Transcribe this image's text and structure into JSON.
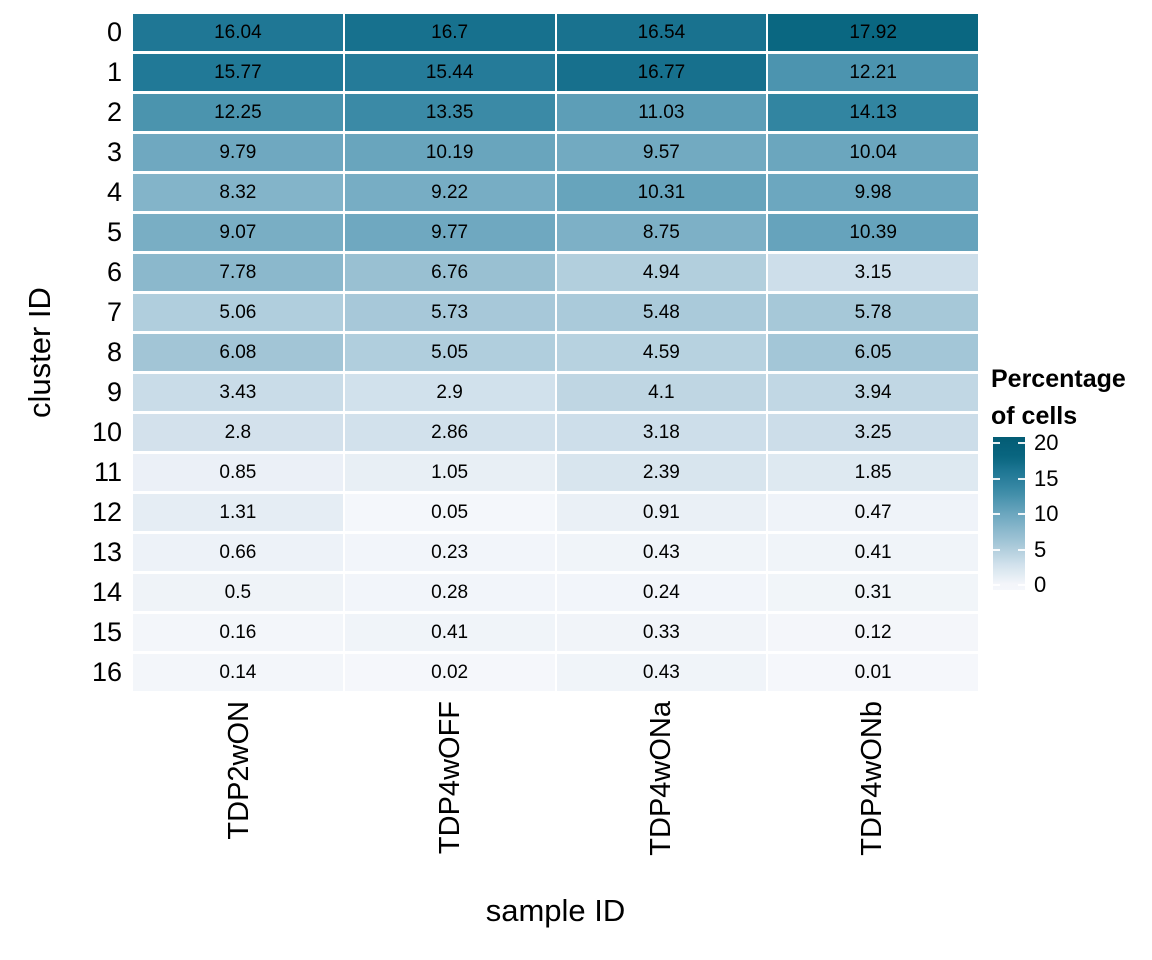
{
  "figure": {
    "background": "#ffffff"
  },
  "chart_data": {
    "type": "heatmap",
    "title": "",
    "xlabel": "sample ID",
    "ylabel": "cluster ID",
    "x_categories": [
      "TDP2wON",
      "TDP4wOFF",
      "TDP4wONa",
      "TDP4wONb"
    ],
    "y_categories": [
      "0",
      "1",
      "2",
      "3",
      "4",
      "5",
      "6",
      "7",
      "8",
      "9",
      "10",
      "11",
      "12",
      "13",
      "14",
      "15",
      "16"
    ],
    "values": [
      [
        "16.04",
        "16.7",
        "16.54",
        "17.92"
      ],
      [
        "15.77",
        "15.44",
        "16.77",
        "12.21"
      ],
      [
        "12.25",
        "13.35",
        "11.03",
        "14.13"
      ],
      [
        "9.79",
        "10.19",
        "9.57",
        "10.04"
      ],
      [
        "8.32",
        "9.22",
        "10.31",
        "9.98"
      ],
      [
        "9.07",
        "9.77",
        "8.75",
        "10.39"
      ],
      [
        "7.78",
        "6.76",
        "4.94",
        "3.15"
      ],
      [
        "5.06",
        "5.73",
        "5.48",
        "5.78"
      ],
      [
        "6.08",
        "5.05",
        "4.59",
        "6.05"
      ],
      [
        "3.43",
        "2.9",
        "4.1",
        "3.94"
      ],
      [
        "2.8",
        "2.86",
        "3.18",
        "3.25"
      ],
      [
        "0.85",
        "1.05",
        "2.39",
        "1.85"
      ],
      [
        "1.31",
        "0.05",
        "0.91",
        "0.47"
      ],
      [
        "0.66",
        "0.23",
        "0.43",
        "0.41"
      ],
      [
        "0.5",
        "0.28",
        "0.24",
        "0.31"
      ],
      [
        "0.16",
        "0.41",
        "0.33",
        "0.12"
      ],
      [
        "0.14",
        "0.02",
        "0.43",
        "0.01"
      ]
    ],
    "grid": "white gaps between tiles",
    "legend_position": "right",
    "legend": {
      "title_line1": "Percentage",
      "title_line2": "of cells",
      "ticks": [
        {
          "label": "20",
          "value": 20
        },
        {
          "label": "15",
          "value": 15
        },
        {
          "label": "10",
          "value": 10
        },
        {
          "label": "5",
          "value": 5
        },
        {
          "label": "0",
          "value": 0
        }
      ],
      "range": {
        "min": -0.7,
        "max": 20.9
      }
    },
    "color_scale": {
      "text_color": "#000000",
      "control_points": [
        {
          "value": 0,
          "color": "#f5f7fb"
        },
        {
          "value": 2.85,
          "color": "#d2e1ec"
        },
        {
          "value": 5.0,
          "color": "#b1cedd"
        },
        {
          "value": 9.8,
          "color": "#6fa8c0"
        },
        {
          "value": 13.4,
          "color": "#3a8aa6"
        },
        {
          "value": 16.0,
          "color": "#1f7795"
        },
        {
          "value": 18.0,
          "color": "#096680"
        },
        {
          "value": 21.0,
          "color": "#035c74"
        }
      ]
    }
  }
}
